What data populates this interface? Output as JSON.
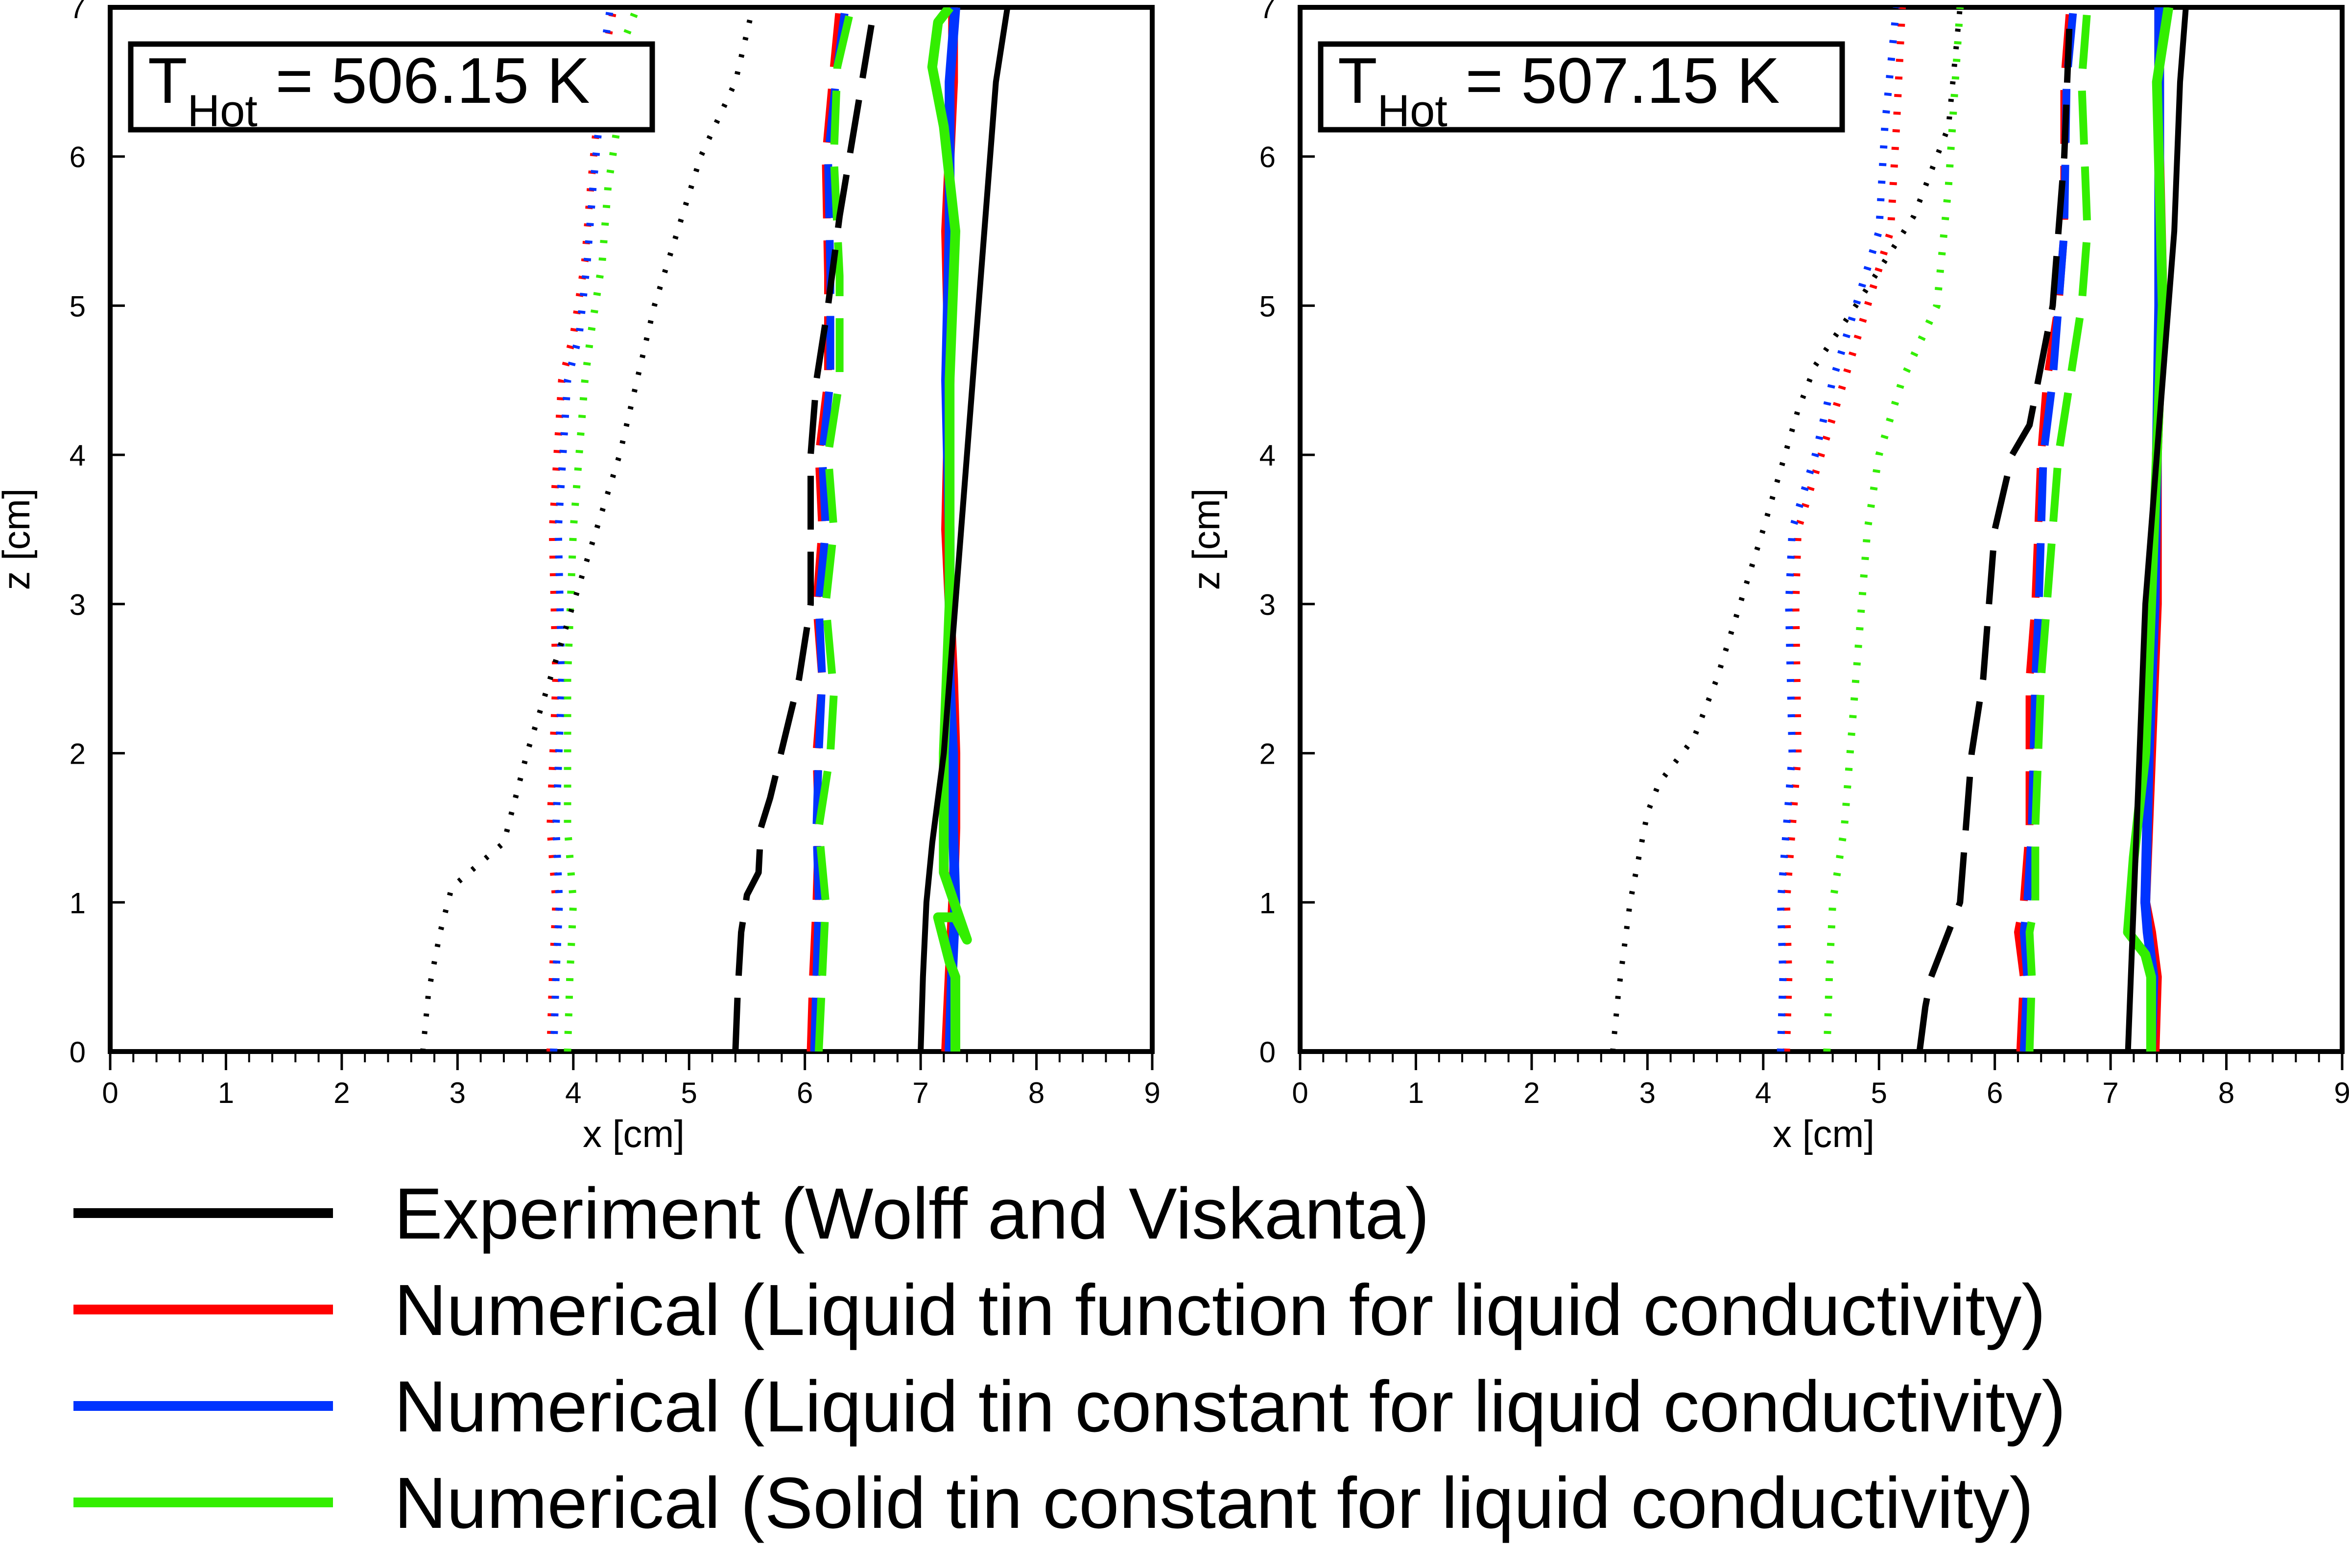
{
  "colors": {
    "experiment": "#000000",
    "liquid_function": "#ff0000",
    "liquid_constant": "#0033ff",
    "solid_constant": "#33ee00"
  },
  "legend": {
    "placement": "bottom",
    "entries": [
      {
        "key": "experiment",
        "label": "Experiment (Wolff and Viskanta)"
      },
      {
        "key": "liquid_function",
        "label": "Numerical (Liquid tin function for liquid conductivity)"
      },
      {
        "key": "liquid_constant",
        "label": "Numerical (Liquid tin constant for liquid conductivity)"
      },
      {
        "key": "solid_constant",
        "label": "Numerical (Solid tin constant for liquid conductivity)"
      }
    ]
  },
  "line_styles": {
    "description_levels": [
      "dotted",
      "dashed",
      "solid"
    ]
  },
  "chart_data": [
    {
      "type": "line",
      "annotation": {
        "prefix": "T",
        "subscript": "Hot",
        "suffix": " = 506.15 K"
      },
      "xlabel": "x [cm]",
      "ylabel": "z [cm]",
      "xlim": [
        0,
        9
      ],
      "ylim": [
        0,
        7
      ],
      "xticks": [
        "0",
        "1",
        "2",
        "3",
        "4",
        "5",
        "6",
        "7",
        "8",
        "9"
      ],
      "yticks": [
        "0",
        "1",
        "2",
        "3",
        "4",
        "5",
        "6",
        "7"
      ],
      "grid": false,
      "series": [
        {
          "key": "experiment",
          "style": "dotted",
          "x": [
            2.7,
            2.75,
            2.85,
            2.95,
            3.1,
            3.4,
            3.6,
            3.8,
            4.0,
            4.4,
            4.7,
            5.1,
            5.4,
            5.55
          ],
          "z": [
            0,
            0.4,
            0.8,
            1.1,
            1.2,
            1.4,
            2.0,
            2.5,
            3.0,
            4.0,
            5.0,
            6.0,
            6.5,
            7.0
          ]
        },
        {
          "key": "experiment",
          "style": "dashed",
          "x": [
            5.4,
            5.42,
            5.45,
            5.5,
            5.6,
            5.62,
            5.7,
            5.95,
            6.05,
            6.05,
            6.1,
            6.2,
            6.3,
            6.45,
            6.6
          ],
          "z": [
            0,
            0.4,
            0.8,
            1.05,
            1.2,
            1.5,
            1.7,
            2.5,
            3.0,
            4.0,
            4.5,
            5.0,
            5.6,
            6.3,
            7.0
          ]
        },
        {
          "key": "experiment",
          "style": "solid",
          "x": [
            7.0,
            7.02,
            7.05,
            7.1,
            7.2,
            7.3,
            7.45,
            7.55,
            7.65,
            7.75
          ],
          "z": [
            0,
            0.5,
            1.0,
            1.4,
            2.0,
            3.0,
            4.5,
            5.5,
            6.5,
            7.0
          ]
        },
        {
          "key": "liquid_function",
          "style": "dotted",
          "x": [
            3.8,
            3.82,
            3.85,
            3.8,
            3.85,
            3.82,
            3.9,
            4.0,
            4.1,
            4.15,
            4.2,
            4.3,
            4.35
          ],
          "z": [
            0,
            0.5,
            1.0,
            1.5,
            2.5,
            3.5,
            4.5,
            4.8,
            5.3,
            5.8,
            6.2,
            6.8,
            7.0
          ]
        },
        {
          "key": "liquid_constant",
          "style": "dotted",
          "x": [
            3.83,
            3.85,
            3.88,
            3.85,
            3.9,
            3.87,
            3.95,
            4.05,
            4.12,
            4.17,
            4.22,
            4.28,
            4.32
          ],
          "z": [
            0,
            0.5,
            1.0,
            1.5,
            2.5,
            3.5,
            4.5,
            4.8,
            5.3,
            5.8,
            6.2,
            6.8,
            7.0
          ]
        },
        {
          "key": "solid_constant",
          "style": "dotted",
          "x": [
            3.95,
            3.97,
            4.0,
            3.95,
            3.95,
            4.0,
            4.1,
            4.15,
            4.25,
            4.3,
            4.38,
            4.45,
            4.55
          ],
          "z": [
            0,
            0.5,
            1.0,
            1.5,
            2.5,
            3.5,
            4.5,
            4.8,
            5.3,
            5.8,
            6.2,
            6.8,
            7.0
          ]
        },
        {
          "key": "liquid_function",
          "style": "dashed",
          "x": [
            6.05,
            6.07,
            6.1,
            6.12,
            6.1,
            6.15,
            6.1,
            6.15,
            6.12,
            6.2,
            6.2,
            6.18,
            6.25,
            6.3
          ],
          "z": [
            0,
            0.5,
            1.0,
            1.5,
            2.0,
            2.5,
            3.0,
            3.5,
            4.0,
            4.5,
            5.2,
            6.0,
            6.6,
            7.0
          ]
        },
        {
          "key": "liquid_constant",
          "style": "dashed",
          "x": [
            6.08,
            6.1,
            6.12,
            6.1,
            6.12,
            6.15,
            6.12,
            6.18,
            6.15,
            6.22,
            6.22,
            6.2,
            6.28,
            6.35
          ],
          "z": [
            0,
            0.5,
            1.0,
            1.5,
            2.0,
            2.5,
            3.0,
            3.5,
            4.0,
            4.5,
            5.2,
            6.0,
            6.6,
            7.0
          ]
        },
        {
          "key": "solid_constant",
          "style": "dashed",
          "x": [
            6.12,
            6.15,
            6.18,
            6.12,
            6.22,
            6.25,
            6.18,
            6.25,
            6.2,
            6.3,
            6.3,
            6.25,
            6.28,
            6.4
          ],
          "z": [
            0,
            0.5,
            1.0,
            1.5,
            2.0,
            2.4,
            3.0,
            3.5,
            4.0,
            4.5,
            5.2,
            6.0,
            6.6,
            7.0
          ]
        },
        {
          "key": "liquid_function",
          "style": "solid",
          "x": [
            7.22,
            7.25,
            7.28,
            7.3,
            7.3,
            7.28,
            7.22,
            7.25,
            7.22,
            7.28,
            7.28
          ],
          "z": [
            0,
            0.5,
            1.0,
            1.5,
            2.0,
            2.5,
            3.5,
            4.5,
            5.5,
            6.5,
            7.0
          ]
        },
        {
          "key": "liquid_constant",
          "style": "solid",
          "x": [
            7.25,
            7.27,
            7.3,
            7.28,
            7.28,
            7.25,
            7.25,
            7.22,
            7.25,
            7.25,
            7.3
          ],
          "z": [
            0,
            0.5,
            1.0,
            1.5,
            2.0,
            2.5,
            3.5,
            4.5,
            5.5,
            6.5,
            7.0
          ]
        },
        {
          "key": "solid_constant",
          "style": "solid",
          "x": [
            7.3,
            7.3,
            7.25,
            7.15,
            7.3,
            7.4,
            7.2,
            7.2,
            7.25,
            7.25,
            7.3,
            7.2,
            7.1,
            7.15,
            7.25
          ],
          "z": [
            0,
            0.5,
            0.6,
            0.9,
            0.9,
            0.75,
            1.2,
            2.0,
            3.0,
            4.5,
            5.5,
            6.2,
            6.6,
            6.9,
            7.0
          ]
        }
      ]
    },
    {
      "type": "line",
      "annotation": {
        "prefix": "T",
        "subscript": "Hot",
        "suffix": " = 507.15 K"
      },
      "xlabel": "x [cm]",
      "ylabel": "z [cm]",
      "xlim": [
        0,
        9
      ],
      "ylim": [
        0,
        7
      ],
      "xticks": [
        "0",
        "1",
        "2",
        "3",
        "4",
        "5",
        "6",
        "7",
        "8",
        "9"
      ],
      "yticks": [
        "0",
        "1",
        "2",
        "3",
        "4",
        "5",
        "6",
        "7"
      ],
      "grid": false,
      "series": [
        {
          "key": "experiment",
          "style": "dotted",
          "x": [
            2.7,
            2.75,
            2.85,
            3.0,
            3.1,
            3.4,
            3.6,
            4.0,
            4.3,
            4.45,
            4.8,
            5.3,
            5.6,
            5.7
          ],
          "z": [
            0,
            0.4,
            1.0,
            1.6,
            1.8,
            2.1,
            2.5,
            3.5,
            4.3,
            4.6,
            5.0,
            5.6,
            6.2,
            7.0
          ]
        },
        {
          "key": "experiment",
          "style": "dashed",
          "x": [
            5.35,
            5.4,
            5.45,
            5.6,
            5.7,
            5.75,
            5.8,
            5.9,
            5.95,
            6.0,
            6.15,
            6.3,
            6.5,
            6.6,
            6.65
          ],
          "z": [
            0,
            0.3,
            0.5,
            0.8,
            1.0,
            1.5,
            2.0,
            2.5,
            3.0,
            3.5,
            4.0,
            4.2,
            5.0,
            6.0,
            7.0
          ]
        },
        {
          "key": "experiment",
          "style": "solid",
          "x": [
            7.15,
            7.2,
            7.25,
            7.3,
            7.35,
            7.4,
            7.45,
            7.55,
            7.6,
            7.65
          ],
          "z": [
            0,
            1.0,
            2.0,
            3.0,
            3.5,
            4.0,
            4.5,
            5.5,
            6.5,
            7.0
          ]
        },
        {
          "key": "liquid_function",
          "style": "dotted",
          "x": [
            4.2,
            4.22,
            4.2,
            4.25,
            4.3,
            4.28,
            4.3,
            4.5,
            4.7,
            4.9,
            5.1,
            5.15,
            5.2
          ],
          "z": [
            0,
            0.5,
            1.0,
            1.5,
            2.0,
            3.0,
            3.5,
            4.0,
            4.5,
            5.0,
            5.5,
            6.2,
            7.0
          ]
        },
        {
          "key": "liquid_constant",
          "style": "dotted",
          "x": [
            4.15,
            4.17,
            4.15,
            4.2,
            4.25,
            4.22,
            4.25,
            4.45,
            4.6,
            4.8,
            5.0,
            5.05,
            5.15
          ],
          "z": [
            0,
            0.5,
            1.0,
            1.5,
            2.0,
            3.0,
            3.5,
            4.0,
            4.5,
            5.0,
            5.5,
            6.2,
            7.0
          ]
        },
        {
          "key": "solid_constant",
          "style": "dotted",
          "x": [
            4.55,
            4.57,
            4.6,
            4.7,
            4.75,
            4.8,
            4.85,
            4.9,
            5.0,
            5.2,
            5.5,
            5.6,
            5.7
          ],
          "z": [
            0,
            0.5,
            1.0,
            1.5,
            2.0,
            2.5,
            3.0,
            3.5,
            4.0,
            4.5,
            5.0,
            5.8,
            7.0
          ]
        },
        {
          "key": "liquid_function",
          "style": "dashed",
          "x": [
            6.22,
            6.25,
            6.2,
            6.25,
            6.3,
            6.3,
            6.35,
            6.4,
            6.45,
            6.55,
            6.6,
            6.6,
            6.65
          ],
          "z": [
            0,
            0.5,
            0.8,
            1.0,
            1.5,
            2.5,
            3.0,
            4.0,
            4.5,
            5.0,
            5.5,
            6.5,
            7.0
          ]
        },
        {
          "key": "liquid_constant",
          "style": "dashed",
          "x": [
            6.25,
            6.28,
            6.25,
            6.28,
            6.32,
            6.35,
            6.38,
            6.42,
            6.5,
            6.55,
            6.6,
            6.62,
            6.68
          ],
          "z": [
            0,
            0.5,
            0.8,
            1.0,
            1.5,
            2.5,
            3.0,
            4.0,
            4.5,
            5.0,
            5.5,
            6.5,
            7.0
          ]
        },
        {
          "key": "solid_constant",
          "style": "dashed",
          "x": [
            6.3,
            6.32,
            6.3,
            6.35,
            6.35,
            6.4,
            6.45,
            6.55,
            6.65,
            6.75,
            6.8,
            6.75,
            6.8
          ],
          "z": [
            0,
            0.5,
            0.8,
            1.0,
            1.5,
            2.5,
            3.0,
            4.0,
            4.5,
            5.0,
            5.5,
            6.5,
            7.0
          ]
        },
        {
          "key": "liquid_function",
          "style": "solid",
          "x": [
            7.38,
            7.4,
            7.35,
            7.3,
            7.35,
            7.4,
            7.4,
            7.45,
            7.42,
            7.42
          ],
          "z": [
            0,
            0.5,
            0.8,
            1.0,
            2.0,
            3.0,
            4.0,
            5.0,
            6.0,
            7.0
          ]
        },
        {
          "key": "liquid_constant",
          "style": "solid",
          "x": [
            7.35,
            7.37,
            7.32,
            7.3,
            7.33,
            7.38,
            7.4,
            7.42,
            7.42,
            7.42
          ],
          "z": [
            0,
            0.5,
            0.8,
            1.0,
            2.0,
            3.0,
            4.0,
            5.0,
            6.0,
            7.0
          ]
        },
        {
          "key": "solid_constant",
          "style": "solid",
          "x": [
            7.35,
            7.35,
            7.3,
            7.15,
            7.2,
            7.3,
            7.35,
            7.4,
            7.45,
            7.4,
            7.5
          ],
          "z": [
            0,
            0.5,
            0.65,
            0.8,
            1.3,
            2.0,
            3.0,
            4.0,
            5.0,
            6.5,
            7.0
          ]
        }
      ]
    }
  ]
}
